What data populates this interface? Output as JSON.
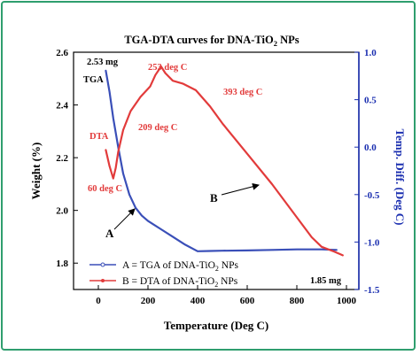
{
  "chart_data": {
    "type": "line",
    "title_main": "TGA-DTA curves for DNA-TiO",
    "title_sub": "2",
    "title_tail": " NPs",
    "xlabel": "Temperature (Deg C)",
    "ylabel_left": "Weight (%)",
    "ylabel_right": "Temp. Diff. (Deg C)",
    "xlim": [
      -100,
      1050
    ],
    "ylim_left": [
      1.7,
      2.6
    ],
    "ylim_right": [
      -1.5,
      1.0
    ],
    "x_ticks": [
      0,
      200,
      400,
      600,
      800,
      1000
    ],
    "y_left_ticks": [
      1.8,
      2.0,
      2.2,
      2.4,
      2.6
    ],
    "y_left_tick_labels": [
      "1.8",
      "2.0",
      "2.2",
      "2.4",
      "2.6"
    ],
    "y_right_ticks": [
      -1.5,
      -1.0,
      -0.5,
      0.0,
      0.5,
      1.0
    ],
    "y_right_tick_labels": [
      "-1.5",
      "-1.0",
      "-0.5",
      "0.0",
      "0.5",
      "1.0"
    ],
    "colors": {
      "axis_right": "#1b2fb0",
      "tga": "#3a4fb8",
      "dta": "#e23b3b",
      "text": "#000000",
      "frame": "#2f9e6e"
    },
    "series": [
      {
        "name": "TGA",
        "axis": "left",
        "x": [
          30,
          45,
          60,
          80,
          100,
          125,
          150,
          175,
          200,
          250,
          300,
          350,
          400,
          450,
          500,
          600,
          700,
          800,
          900,
          960
        ],
        "y": [
          2.53,
          2.45,
          2.35,
          2.24,
          2.14,
          2.06,
          2.01,
          1.98,
          1.96,
          1.93,
          1.9,
          1.87,
          1.845,
          1.846,
          1.847,
          1.848,
          1.85,
          1.852,
          1.852,
          1.85
        ]
      },
      {
        "name": "DTA",
        "axis": "right",
        "x": [
          30,
          45,
          60,
          70,
          80,
          100,
          130,
          170,
          209,
          230,
          253,
          270,
          300,
          340,
          393,
          450,
          500,
          600,
          700,
          800,
          860,
          900,
          950,
          985
        ],
        "y": [
          -0.03,
          -0.2,
          -0.33,
          -0.22,
          -0.05,
          0.18,
          0.38,
          0.53,
          0.64,
          0.76,
          0.85,
          0.78,
          0.7,
          0.67,
          0.6,
          0.43,
          0.25,
          -0.07,
          -0.39,
          -0.74,
          -0.95,
          -1.05,
          -1.1,
          -1.14
        ]
      }
    ],
    "annotations": {
      "tga_start": "2.53 mg",
      "tga_label": "TGA",
      "tga_end": "1.85 mg",
      "dta_label": "DTA",
      "peak_60": "60 deg C",
      "peak_209": "209 deg C",
      "peak_253": "253 deg C",
      "peak_393": "393 deg C",
      "pointer_a": "A",
      "pointer_b": "B"
    },
    "legend": {
      "placement": "bottom-left",
      "a_label": "A = TGA of DNA-TiO",
      "b_label": "B = DTA of DNA-TiO",
      "sub": "2",
      "tail": " NPs"
    }
  }
}
